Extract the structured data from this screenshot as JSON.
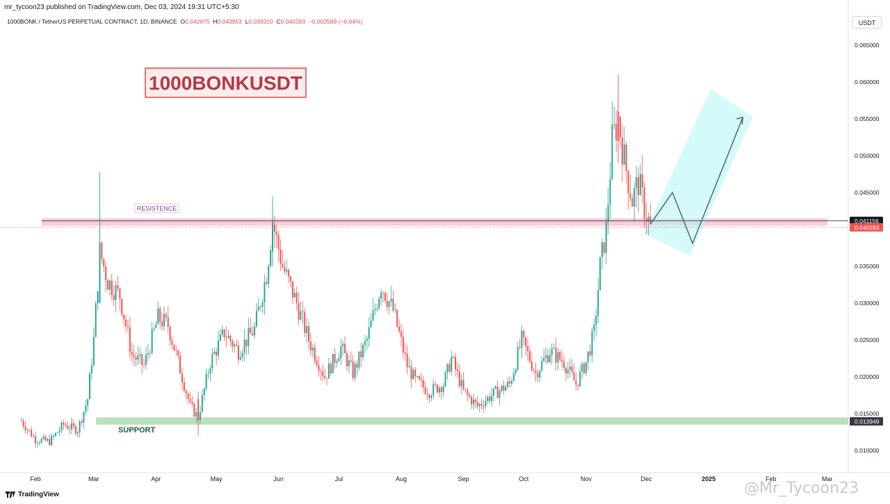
{
  "header": {
    "published": "mr_tycoon23 published on TradingView.com, Dec 03, 2024 19:31 UTC+5:30",
    "symbol_line": "1000BONK / TetherUS PERPETUAL CONTRACT, 1D, BINANCE",
    "o_label": "O",
    "open": "0.042875",
    "h_label": "H",
    "high": "0.043953",
    "l_label": "L",
    "low": "0.039310",
    "c_label": "C",
    "close": "0.040283",
    "change": "−0.002589 (−6.04%)"
  },
  "currency": "USDT",
  "footer": {
    "logo_text": "TradingView",
    "watermark": "@Mr_Tycoon23"
  },
  "colors": {
    "up": "#26a69a",
    "down": "#ef5350",
    "resistance_zone": "#f8bbd0",
    "support_zone": "#a5d6a7",
    "projection_zone": "#b2f5f5",
    "title_box": "#e57373"
  },
  "chart_data": {
    "type": "candlestick",
    "title": "1000BONKUSDT",
    "x_axis_labels": [
      "Feb",
      "Mar",
      "Apr",
      "May",
      "Jun",
      "Jul",
      "Aug",
      "Sep",
      "Oct",
      "Nov",
      "Dec",
      "2025",
      "Feb",
      "Mar"
    ],
    "y_axis_labels": [
      "0.065000",
      "0.060000",
      "0.055000",
      "0.050000",
      "0.045000",
      "0.040000",
      "0.035000",
      "0.030000",
      "0.025000",
      "0.020000",
      "0.015000",
      "0.010000"
    ],
    "ylim": [
      0.0055,
      0.068
    ],
    "price_tags": [
      {
        "value": 0.041156,
        "label": "0.041156",
        "color": "#131722"
      },
      {
        "value": 0.040283,
        "label": "0.040283",
        "color": "#ef5350"
      },
      {
        "value": 0.013949,
        "label": "0.013949",
        "color": "#363a45"
      }
    ],
    "annotations": {
      "resistance_label": "RESISTENCE",
      "support_label": "SUPPORT",
      "resistance_zone": [
        0.0405,
        0.0415
      ],
      "support_zone": [
        0.0135,
        0.0145
      ],
      "projection_path": [
        {
          "date": "2024-12-03",
          "price": 0.0407
        },
        {
          "date": "2024-12-14",
          "price": 0.045
        },
        {
          "date": "2024-12-24",
          "price": 0.0381
        },
        {
          "date": "2025-01-18",
          "price": 0.0552
        }
      ]
    },
    "anchors": [
      {
        "date": "2024-01-25",
        "close": 0.014
      },
      {
        "date": "2024-02-01",
        "close": 0.0115
      },
      {
        "date": "2024-02-08",
        "close": 0.0112
      },
      {
        "date": "2024-02-15",
        "close": 0.0135
      },
      {
        "date": "2024-02-22",
        "close": 0.0128
      },
      {
        "date": "2024-02-27",
        "close": 0.017
      },
      {
        "date": "2024-03-01",
        "close": 0.025
      },
      {
        "date": "2024-03-04",
        "close": 0.037
      },
      {
        "date": "2024-03-08",
        "close": 0.033
      },
      {
        "date": "2024-03-14",
        "close": 0.031
      },
      {
        "date": "2024-03-20",
        "close": 0.023
      },
      {
        "date": "2024-03-26",
        "close": 0.0215
      },
      {
        "date": "2024-04-02",
        "close": 0.028
      },
      {
        "date": "2024-04-07",
        "close": 0.027
      },
      {
        "date": "2024-04-12",
        "close": 0.022
      },
      {
        "date": "2024-04-18",
        "close": 0.016
      },
      {
        "date": "2024-04-22",
        "close": 0.0145
      },
      {
        "date": "2024-04-28",
        "close": 0.022
      },
      {
        "date": "2024-05-05",
        "close": 0.026
      },
      {
        "date": "2024-05-12",
        "close": 0.0235
      },
      {
        "date": "2024-05-20",
        "close": 0.0265
      },
      {
        "date": "2024-05-26",
        "close": 0.034
      },
      {
        "date": "2024-05-29",
        "close": 0.041
      },
      {
        "date": "2024-06-03",
        "close": 0.035
      },
      {
        "date": "2024-06-10",
        "close": 0.03
      },
      {
        "date": "2024-06-16",
        "close": 0.025
      },
      {
        "date": "2024-06-24",
        "close": 0.02
      },
      {
        "date": "2024-07-02",
        "close": 0.024
      },
      {
        "date": "2024-07-08",
        "close": 0.0205
      },
      {
        "date": "2024-07-15",
        "close": 0.025
      },
      {
        "date": "2024-07-22",
        "close": 0.0325
      },
      {
        "date": "2024-07-28",
        "close": 0.029
      },
      {
        "date": "2024-08-04",
        "close": 0.0215
      },
      {
        "date": "2024-08-08",
        "close": 0.0195
      },
      {
        "date": "2024-08-15",
        "close": 0.018
      },
      {
        "date": "2024-08-22",
        "close": 0.019
      },
      {
        "date": "2024-08-26",
        "close": 0.0225
      },
      {
        "date": "2024-09-01",
        "close": 0.018
      },
      {
        "date": "2024-09-08",
        "close": 0.016
      },
      {
        "date": "2024-09-15",
        "close": 0.0175
      },
      {
        "date": "2024-09-24",
        "close": 0.019
      },
      {
        "date": "2024-09-30",
        "close": 0.025
      },
      {
        "date": "2024-10-07",
        "close": 0.0205
      },
      {
        "date": "2024-10-14",
        "close": 0.0235
      },
      {
        "date": "2024-10-21",
        "close": 0.022
      },
      {
        "date": "2024-10-27",
        "close": 0.019
      },
      {
        "date": "2024-11-01",
        "close": 0.022
      },
      {
        "date": "2024-11-05",
        "close": 0.026
      },
      {
        "date": "2024-11-08",
        "close": 0.035
      },
      {
        "date": "2024-11-11",
        "close": 0.04
      },
      {
        "date": "2024-11-14",
        "close": 0.052
      },
      {
        "date": "2024-11-17",
        "close": 0.055
      },
      {
        "date": "2024-11-20",
        "close": 0.0495
      },
      {
        "date": "2024-11-24",
        "close": 0.044
      },
      {
        "date": "2024-11-27",
        "close": 0.0465
      },
      {
        "date": "2024-11-30",
        "close": 0.043
      },
      {
        "date": "2024-12-03",
        "close": 0.0403
      }
    ]
  }
}
